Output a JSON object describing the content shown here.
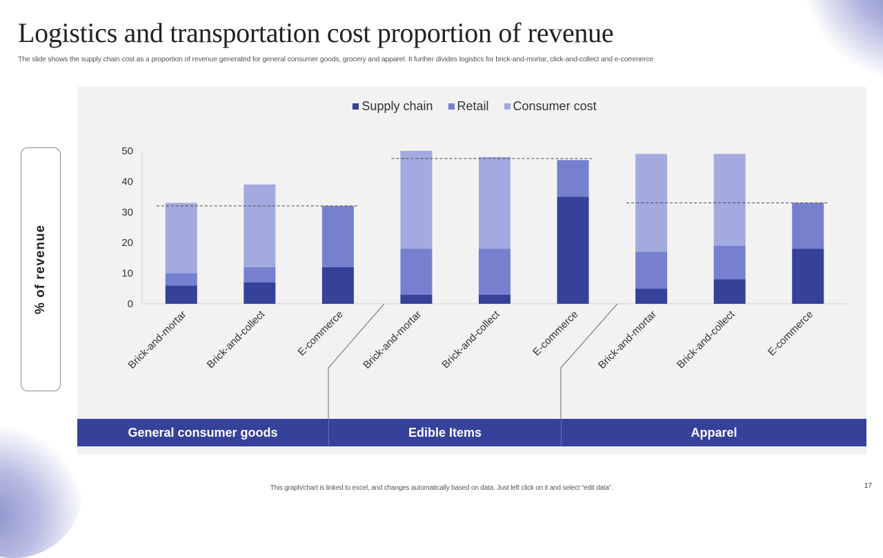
{
  "slide": {
    "title": "Logistics and transportation cost proportion of revenue",
    "subtitle": "The slide shows the supply chain cost as a proportion of revenue generated for general consumer goods, grocery and apparel. It further divides logistics for brick-and-mortar, click-and-collect and e-commerce",
    "y_axis_box_label": "% of revenue",
    "footer_note": "This graph/chart is linked to excel, and changes automatically based on data. Just left click on it and select “edit data”.",
    "page_number": "17"
  },
  "colors": {
    "supply_chain": "#36419a",
    "retail": "#7780cf",
    "consumer_cost": "#a3aadf",
    "band": "#36419a"
  },
  "chart_data": {
    "type": "bar",
    "stacked": true,
    "title": "",
    "xlabel": "",
    "ylabel": "% of revenue",
    "ylim": [
      0,
      50
    ],
    "yticks": [
      0,
      10,
      20,
      30,
      40,
      50
    ],
    "grid": false,
    "legend_position": "top-center",
    "categories": [
      "Brick-and-mortar",
      "Brick-and-collect",
      "E-commerce",
      "Brick-and-mortar",
      "Brick-and-collect",
      "E-commerce",
      "Brick-and-mortar",
      "Brick-and-collect",
      "E-commerce"
    ],
    "groups": [
      {
        "name": "General consumer goods",
        "category_indices": [
          0,
          1,
          2
        ],
        "average_line": 32
      },
      {
        "name": "Edible Items",
        "category_indices": [
          3,
          4,
          5
        ],
        "average_line": 47.5
      },
      {
        "name": "Apparel",
        "category_indices": [
          6,
          7,
          8
        ],
        "average_line": 33
      }
    ],
    "series": [
      {
        "name": "Supply chain",
        "values": [
          6,
          7,
          12,
          3,
          3,
          35,
          5,
          8,
          18
        ]
      },
      {
        "name": "Retail",
        "values": [
          4,
          5,
          20,
          15,
          15,
          12,
          12,
          11,
          15
        ]
      },
      {
        "name": "Consumer cost",
        "values": [
          23,
          27,
          0,
          32,
          30,
          0,
          32,
          30,
          0
        ]
      }
    ]
  }
}
